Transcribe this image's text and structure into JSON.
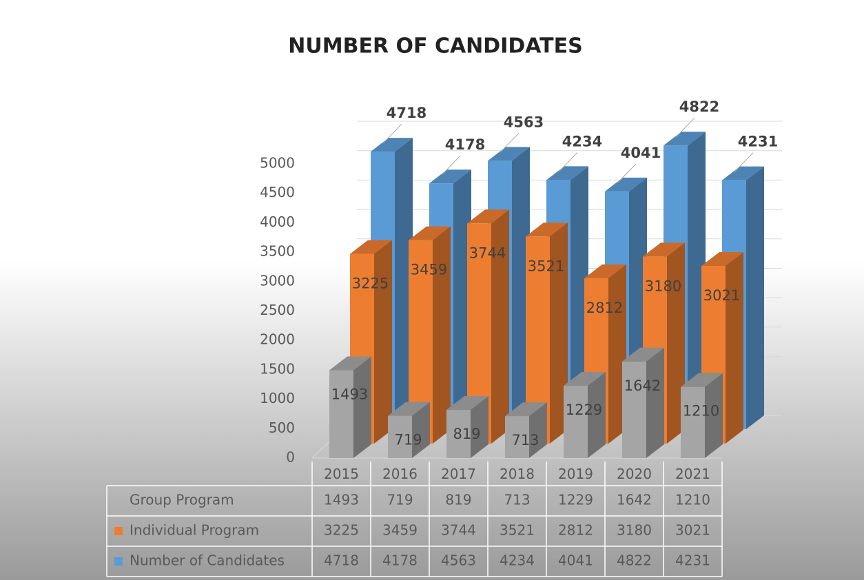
{
  "chart_data": {
    "type": "bar3d",
    "title": "NUMBER OF CANDIDATES",
    "categories": [
      "2015",
      "2016",
      "2017",
      "2018",
      "2019",
      "2020",
      "2021"
    ],
    "series": [
      {
        "name": "Group Program",
        "color": "#a5a5a5",
        "values": [
          1493,
          719,
          819,
          713,
          1229,
          1642,
          1210
        ]
      },
      {
        "name": "Individual Program",
        "color": "#ed7d31",
        "values": [
          3225,
          3459,
          3744,
          3521,
          2812,
          3180,
          3021
        ]
      },
      {
        "name": "Number of Candidates",
        "color": "#5b9bd5",
        "values": [
          4718,
          4178,
          4563,
          4234,
          4041,
          4822,
          4231
        ]
      }
    ],
    "ylim": [
      0,
      5000
    ],
    "yticks": [
      0,
      500,
      1000,
      1500,
      2000,
      2500,
      3000,
      3500,
      4000,
      4500,
      5000
    ],
    "grid": true
  }
}
